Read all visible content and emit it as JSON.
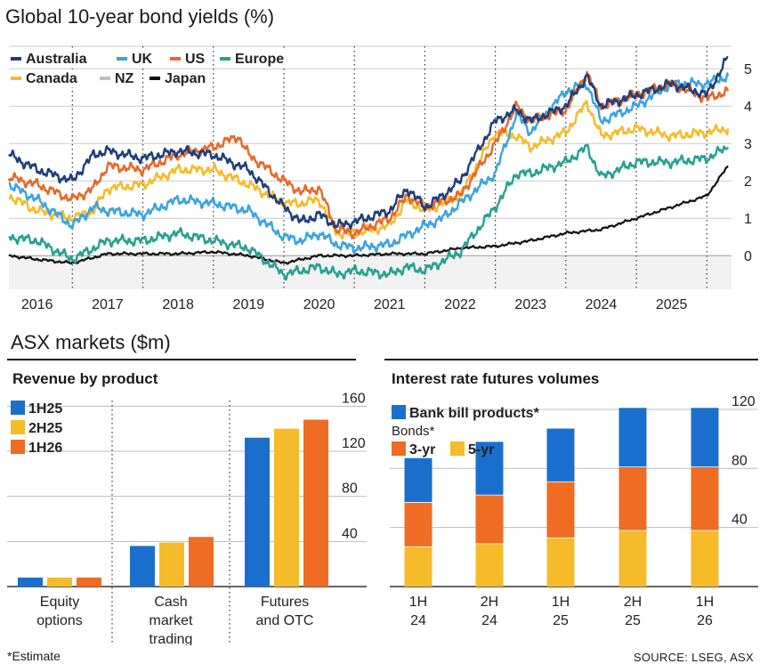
{
  "titles": {
    "main": "Global 10-year bond yields (%)",
    "asx": "ASX markets ($m)",
    "revenue": "Revenue by product",
    "irf": "Interest rate futures volumes",
    "footnote": "*Estimate",
    "source": "SOURCE: LSEG, ASX"
  },
  "colors": {
    "Australia": "#1f3e7a",
    "UK": "#3aa3e0",
    "US": "#e8682a",
    "Europe": "#27a093",
    "Canada": "#f6bb2a",
    "NZ": "#bdbdbd",
    "Japan": "#111111",
    "blue": "#1b6fcc",
    "yellow": "#f6bb2a",
    "orange": "#ee6c23",
    "panel": "#f2f2f2",
    "grid": "#333333"
  },
  "chart_data": [
    {
      "type": "line",
      "title": "Global 10-year bond yields (%)",
      "xlabel": "",
      "ylabel": "%",
      "xlim": [
        2015.6,
        2025.85
      ],
      "ylim": [
        -0.9,
        5.6
      ],
      "x_ticks": [
        "2016",
        "2017",
        "2018",
        "2019",
        "2020",
        "2021",
        "2022",
        "2023",
        "2024",
        "2025"
      ],
      "y_ticks": [
        "0",
        "1",
        "2",
        "3",
        "4",
        "5"
      ],
      "legend": [
        "Australia",
        "UK",
        "US",
        "Europe",
        "Canada",
        "NZ",
        "Japan"
      ],
      "legend_position": "top-left",
      "series": [
        {
          "name": "Australia",
          "x": [
            2015.6,
            2016.0,
            2016.5,
            2016.8,
            2017.0,
            2017.5,
            2018.0,
            2018.5,
            2019.0,
            2019.5,
            2019.75,
            2020.0,
            2020.25,
            2020.5,
            2021.0,
            2021.25,
            2021.5,
            2021.75,
            2022.0,
            2022.5,
            2022.8,
            2023.0,
            2023.5,
            2023.8,
            2024.0,
            2024.5,
            2025.0,
            2025.5,
            2025.8
          ],
          "values": [
            2.7,
            2.3,
            2.0,
            2.7,
            2.8,
            2.6,
            2.8,
            2.7,
            2.3,
            1.3,
            0.9,
            1.1,
            0.8,
            0.9,
            1.2,
            1.8,
            1.3,
            1.6,
            2.0,
            3.6,
            3.9,
            3.6,
            4.0,
            4.8,
            4.0,
            4.3,
            4.6,
            4.3,
            5.3
          ]
        },
        {
          "name": "UK",
          "x": [
            2015.6,
            2016.0,
            2016.5,
            2016.8,
            2017.0,
            2017.5,
            2018.0,
            2018.5,
            2019.0,
            2019.5,
            2019.75,
            2020.0,
            2020.25,
            2020.5,
            2021.0,
            2021.5,
            2021.75,
            2022.0,
            2022.5,
            2022.8,
            2023.0,
            2023.5,
            2023.8,
            2024.0,
            2024.5,
            2025.0,
            2025.5,
            2025.8
          ],
          "values": [
            1.9,
            1.5,
            0.8,
            1.3,
            1.2,
            1.1,
            1.5,
            1.4,
            1.2,
            0.5,
            0.4,
            0.6,
            0.3,
            0.2,
            0.3,
            0.8,
            1.0,
            1.4,
            2.2,
            3.8,
            3.3,
            4.4,
            4.6,
            3.6,
            4.0,
            4.6,
            4.6,
            4.8
          ]
        },
        {
          "name": "US",
          "x": [
            2015.6,
            2016.0,
            2016.5,
            2016.8,
            2017.0,
            2017.5,
            2018.0,
            2018.5,
            2018.85,
            2019.0,
            2019.5,
            2019.75,
            2020.0,
            2020.25,
            2020.5,
            2021.0,
            2021.25,
            2021.5,
            2022.0,
            2022.5,
            2022.8,
            2023.0,
            2023.5,
            2023.8,
            2024.0,
            2024.5,
            2025.0,
            2025.5,
            2025.8
          ],
          "values": [
            2.1,
            1.9,
            1.5,
            1.8,
            2.4,
            2.3,
            2.7,
            2.9,
            3.2,
            2.7,
            2.0,
            1.7,
            1.8,
            0.7,
            0.6,
            1.0,
            1.6,
            1.3,
            1.6,
            3.0,
            4.0,
            3.6,
            3.9,
            4.9,
            4.0,
            4.3,
            4.6,
            4.2,
            4.4
          ]
        },
        {
          "name": "Europe",
          "x": [
            2015.6,
            2016.0,
            2016.5,
            2016.8,
            2017.0,
            2017.5,
            2018.0,
            2018.5,
            2019.0,
            2019.5,
            2019.75,
            2020.0,
            2020.25,
            2020.5,
            2021.0,
            2021.25,
            2021.5,
            2022.0,
            2022.5,
            2022.8,
            2023.0,
            2023.5,
            2023.8,
            2024.0,
            2024.5,
            2025.0,
            2025.5,
            2025.8
          ],
          "values": [
            0.5,
            0.4,
            -0.1,
            0.2,
            0.4,
            0.4,
            0.6,
            0.4,
            0.2,
            -0.5,
            -0.4,
            -0.3,
            -0.5,
            -0.4,
            -0.5,
            -0.3,
            -0.4,
            0.1,
            1.3,
            2.2,
            2.2,
            2.5,
            2.9,
            2.1,
            2.5,
            2.5,
            2.6,
            2.9
          ]
        },
        {
          "name": "Canada",
          "x": [
            2015.6,
            2016.0,
            2016.5,
            2016.8,
            2017.0,
            2017.5,
            2018.0,
            2018.5,
            2019.0,
            2019.5,
            2019.75,
            2020.0,
            2020.25,
            2020.5,
            2021.0,
            2021.25,
            2021.5,
            2022.0,
            2022.5,
            2022.8,
            2023.0,
            2023.5,
            2023.8,
            2024.0,
            2024.5,
            2025.0,
            2025.5,
            2025.8
          ],
          "values": [
            1.6,
            1.2,
            1.0,
            1.2,
            1.8,
            1.9,
            2.3,
            2.3,
            1.9,
            1.4,
            1.4,
            1.5,
            0.6,
            0.6,
            0.8,
            1.5,
            1.2,
            1.6,
            3.3,
            3.2,
            2.9,
            3.3,
            4.1,
            3.2,
            3.4,
            3.2,
            3.3,
            3.4
          ]
        },
        {
          "name": "NZ",
          "x": [],
          "values": []
        },
        {
          "name": "Japan",
          "x": [
            2015.6,
            2016.0,
            2016.5,
            2017.0,
            2017.5,
            2018.0,
            2018.5,
            2019.0,
            2019.5,
            2020.0,
            2020.5,
            2021.0,
            2021.5,
            2022.0,
            2022.5,
            2023.0,
            2023.5,
            2024.0,
            2024.5,
            2025.0,
            2025.5,
            2025.8
          ],
          "values": [
            0.0,
            -0.1,
            -0.2,
            0.05,
            0.05,
            0.05,
            0.1,
            0.0,
            -0.2,
            0.0,
            0.0,
            0.05,
            0.05,
            0.2,
            0.25,
            0.4,
            0.6,
            0.7,
            1.0,
            1.3,
            1.6,
            2.4
          ]
        }
      ]
    },
    {
      "type": "bar",
      "title": "Revenue by product",
      "categories": [
        [
          "Equity",
          "options"
        ],
        [
          "Cash",
          "market",
          "trading"
        ],
        [
          "Futures",
          "and OTC"
        ]
      ],
      "series": [
        {
          "name": "1H25",
          "values": [
            8,
            36,
            132
          ]
        },
        {
          "name": "2H25",
          "values": [
            8,
            39,
            140
          ]
        },
        {
          "name": "1H26",
          "values": [
            8,
            44,
            148
          ]
        }
      ],
      "y_ticks": [
        "40",
        "80",
        "120",
        "160"
      ],
      "ylim": [
        0,
        165
      ],
      "xlabel": "",
      "ylabel": "$m",
      "legend_position": "top-left"
    },
    {
      "type": "bar",
      "stacked": true,
      "title": "Interest rate futures volumes",
      "categories": [
        [
          "1H",
          "24"
        ],
        [
          "2H",
          "24"
        ],
        [
          "1H",
          "25"
        ],
        [
          "2H",
          "25"
        ],
        [
          "1H",
          "26"
        ]
      ],
      "series": [
        {
          "name": "5-yr",
          "values": [
            27,
            29,
            33,
            38,
            38
          ]
        },
        {
          "name": "3-yr",
          "values": [
            30,
            33,
            38,
            43,
            43
          ]
        },
        {
          "name": "Bank bill products*",
          "values": [
            30,
            36,
            36,
            40,
            40
          ]
        }
      ],
      "legend_title": "Bonds*",
      "y_ticks": [
        "40",
        "80",
        "120"
      ],
      "ylim": [
        0,
        126
      ],
      "xlabel": "",
      "ylabel": "",
      "legend_position": "top-left"
    }
  ]
}
